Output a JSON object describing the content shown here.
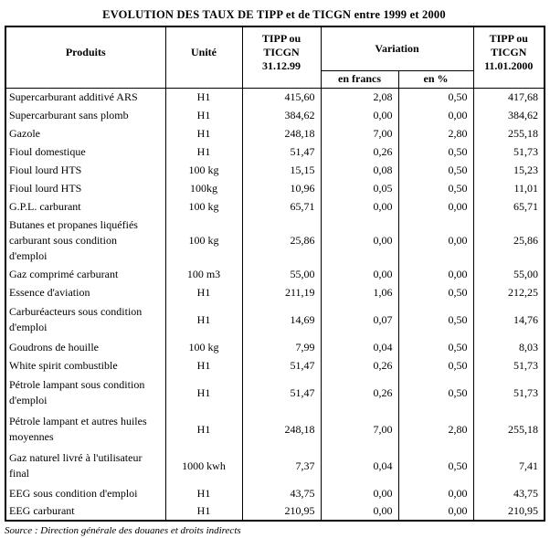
{
  "title": "EVOLUTION DES TAUX DE TIPP et de TICGN entre 1999 et 2000",
  "table": {
    "headers": {
      "produits": "Produits",
      "unite": "Unité",
      "tipp_1999": "TIPP ou\nTICGN\n31.12.99",
      "variation": "Variation",
      "en_francs": "en francs",
      "en_pct": "en %",
      "tipp_2000": "TIPP ou\nTICGN\n11.01.2000"
    },
    "rows": [
      {
        "produit": "Supercarburant additivé ARS",
        "unite": "H1",
        "tipp99": "415,60",
        "var_francs": "2,08",
        "var_pct": "0,50",
        "tipp2000": "417,68"
      },
      {
        "produit": "Supercarburant sans plomb",
        "unite": "H1",
        "tipp99": "384,62",
        "var_francs": "0,00",
        "var_pct": "0,00",
        "tipp2000": "384,62"
      },
      {
        "produit": "Gazole",
        "unite": "H1",
        "tipp99": "248,18",
        "var_francs": "7,00",
        "var_pct": "2,80",
        "tipp2000": "255,18"
      },
      {
        "produit": "Fioul domestique",
        "unite": "H1",
        "tipp99": "51,47",
        "var_francs": "0,26",
        "var_pct": "0,50",
        "tipp2000": "51,73"
      },
      {
        "produit": "Fioul lourd HTS",
        "unite": "100 kg",
        "tipp99": "15,15",
        "var_francs": "0,08",
        "var_pct": "0,50",
        "tipp2000": "15,23"
      },
      {
        "produit": "Fioul lourd HTS",
        "unite": "100kg",
        "tipp99": "10,96",
        "var_francs": "0,05",
        "var_pct": "0,50",
        "tipp2000": "11,01"
      },
      {
        "produit": "G.P.L. carburant",
        "unite": "100 kg",
        "tipp99": "65,71",
        "var_francs": "0,00",
        "var_pct": "0,00",
        "tipp2000": "65,71"
      },
      {
        "produit": "Butanes et propanes liquéfiés\ncarburant sous condition\nd'emploi",
        "unite": "100 kg",
        "tipp99": "25,86",
        "var_francs": "0,00",
        "var_pct": "0,00",
        "tipp2000": "25,86"
      },
      {
        "produit": "Gaz comprimé carburant",
        "unite": "100 m3",
        "tipp99": "55,00",
        "var_francs": "0,00",
        "var_pct": "0,00",
        "tipp2000": "55,00"
      },
      {
        "produit": "Essence d'aviation",
        "unite": "H1",
        "tipp99": "211,19",
        "var_francs": "1,06",
        "var_pct": "0,50",
        "tipp2000": "212,25"
      },
      {
        "produit": "Carburéacteurs sous condition\nd'emploi",
        "unite": "H1",
        "tipp99": "14,69",
        "var_francs": "0,07",
        "var_pct": "0,50",
        "tipp2000": "14,76"
      },
      {
        "produit": "Goudrons de houille",
        "unite": "100 kg",
        "tipp99": "7,99",
        "var_francs": "0,04",
        "var_pct": "0,50",
        "tipp2000": "8,03"
      },
      {
        "produit": "White spirit combustible",
        "unite": "H1",
        "tipp99": "51,47",
        "var_francs": "0,26",
        "var_pct": "0,50",
        "tipp2000": "51,73"
      },
      {
        "produit": "Pétrole lampant sous condition\nd'emploi",
        "unite": "H1",
        "tipp99": "51,47",
        "var_francs": "0,26",
        "var_pct": "0,50",
        "tipp2000": "51,73"
      },
      {
        "produit": "Pétrole lampant et autres huiles\nmoyennes",
        "unite": "H1",
        "tipp99": "248,18",
        "var_francs": "7,00",
        "var_pct": "2,80",
        "tipp2000": "255,18"
      },
      {
        "produit": "Gaz naturel livré à l'utilisateur\nfinal",
        "unite": "1000 kwh",
        "tipp99": "7,37",
        "var_francs": "0,04",
        "var_pct": "0,50",
        "tipp2000": "7,41"
      },
      {
        "produit": "EEG sous condition d'emploi",
        "unite": "H1",
        "tipp99": "43,75",
        "var_francs": "0,00",
        "var_pct": "0,00",
        "tipp2000": "43,75"
      },
      {
        "produit": "EEG carburant",
        "unite": "H1",
        "tipp99": "210,95",
        "var_francs": "0,00",
        "var_pct": "0,00",
        "tipp2000": "210,95"
      }
    ]
  },
  "source": "Source : Direction générale des douanes et droits indirects"
}
